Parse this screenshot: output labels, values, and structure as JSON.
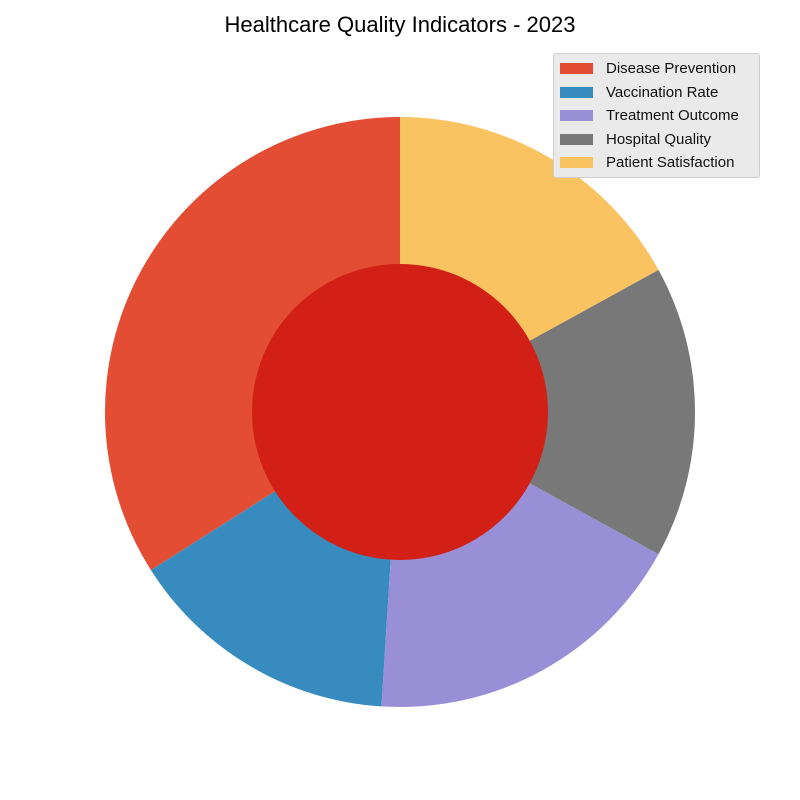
{
  "chart_data": {
    "type": "pie",
    "style": "donut",
    "title": "Healthcare Quality Indicators - 2023",
    "legend_position": "top-right",
    "center_color": "#d22016",
    "slices": [
      {
        "label": "Disease Prevention",
        "value": 34,
        "color": "#e24d34"
      },
      {
        "label": "Vaccination Rate",
        "value": 15,
        "color": "#378bbe"
      },
      {
        "label": "Treatment Outcome",
        "value": 18,
        "color": "#998fd6"
      },
      {
        "label": "Hospital Quality",
        "value": 16,
        "color": "#787878"
      },
      {
        "label": "Patient Satisfaction",
        "value": 17,
        "color": "#fac362"
      }
    ]
  }
}
